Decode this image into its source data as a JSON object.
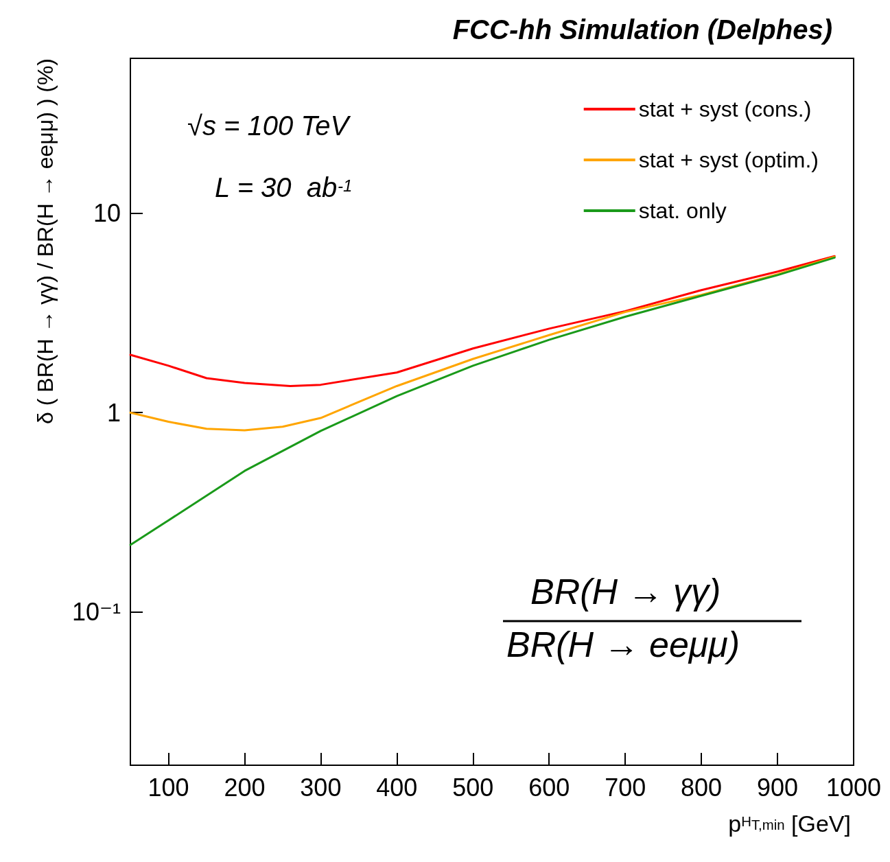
{
  "chart_data": {
    "type": "line",
    "title": "FCC-hh Simulation (Delphes)",
    "xlabel": "p$^{H}$$_{T,min}$ [GeV]",
    "ylabel": "δ ( BR(H → γγ) / BR(H → eeμμ) ) (%)",
    "annotations": [
      "√s = 100 TeV",
      "L = 30  ab$^{-1}$",
      "BR(H → γγ)",
      "BR(H → eeμμ)"
    ],
    "series": [
      {
        "name": "stat + syst (cons.)",
        "color": "#ff0000",
        "x": [
          50,
          100,
          150,
          200,
          260,
          300,
          400,
          500,
          600,
          700,
          800,
          900,
          975
        ],
        "values": [
          1.95,
          1.72,
          1.49,
          1.41,
          1.36,
          1.38,
          1.59,
          2.1,
          2.64,
          3.23,
          4.12,
          5.1,
          6.1
        ]
      },
      {
        "name": "stat + syst (optim.)",
        "color": "#ffa500",
        "x": [
          50,
          100,
          150,
          200,
          250,
          300,
          400,
          500,
          600,
          700,
          800,
          900,
          975
        ],
        "values": [
          1.0,
          0.9,
          0.83,
          0.815,
          0.85,
          0.94,
          1.36,
          1.86,
          2.45,
          3.2,
          3.9,
          4.95,
          6.05
        ]
      },
      {
        "name": "stat. only",
        "color": "#1a9a1a",
        "x": [
          50,
          100,
          200,
          300,
          400,
          500,
          600,
          700,
          800,
          900,
          975
        ],
        "values": [
          0.217,
          0.288,
          0.51,
          0.81,
          1.21,
          1.72,
          2.32,
          3.03,
          3.86,
          4.9,
          6.0
        ]
      }
    ],
    "xlim": [
      50,
      1000
    ],
    "xticks": [
      100,
      200,
      300,
      400,
      500,
      600,
      700,
      800,
      900,
      1000
    ],
    "ylim": [
      0.017,
      60
    ],
    "yticks": [
      {
        "value": 0.1,
        "label": "10⁻¹"
      },
      1,
      10
    ],
    "log": "y",
    "grid": false,
    "legend": "top right",
    "marker": "none",
    "line_style": "solid"
  }
}
